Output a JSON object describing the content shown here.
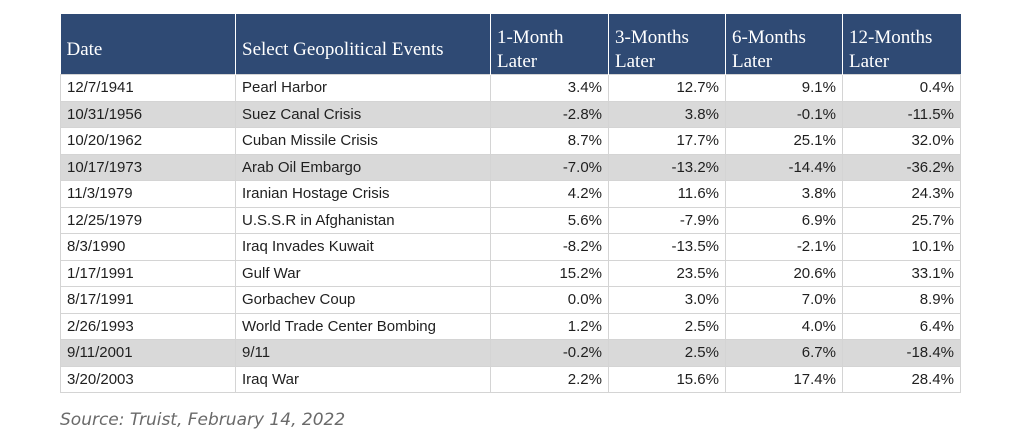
{
  "table": {
    "headers": {
      "date": "Date",
      "event": "Select Geopolitical Events",
      "m1_line1": "1-Month",
      "m1_line2": "Later",
      "m3_line1": "3-Months",
      "m3_line2": "Later",
      "m6_line1": "6-Months",
      "m6_line2": "Later",
      "m12_line1": "12-Months",
      "m12_line2": "Later"
    },
    "rows": [
      {
        "date": "12/7/1941",
        "event": "Pearl Harbor",
        "m1": "3.4%",
        "m3": "12.7%",
        "m6": "9.1%",
        "m12": "0.4%",
        "shaded": false
      },
      {
        "date": "10/31/1956",
        "event": "Suez Canal Crisis",
        "m1": "-2.8%",
        "m3": "3.8%",
        "m6": "-0.1%",
        "m12": "-11.5%",
        "shaded": true
      },
      {
        "date": "10/20/1962",
        "event": "Cuban Missile Crisis",
        "m1": "8.7%",
        "m3": "17.7%",
        "m6": "25.1%",
        "m12": "32.0%",
        "shaded": false
      },
      {
        "date": "10/17/1973",
        "event": "Arab Oil Embargo",
        "m1": "-7.0%",
        "m3": "-13.2%",
        "m6": "-14.4%",
        "m12": "-36.2%",
        "shaded": true
      },
      {
        "date": "11/3/1979",
        "event": "Iranian Hostage Crisis",
        "m1": "4.2%",
        "m3": "11.6%",
        "m6": "3.8%",
        "m12": "24.3%",
        "shaded": false
      },
      {
        "date": "12/25/1979",
        "event": "U.S.S.R in Afghanistan",
        "m1": "5.6%",
        "m3": "-7.9%",
        "m6": "6.9%",
        "m12": "25.7%",
        "shaded": false
      },
      {
        "date": "8/3/1990",
        "event": "Iraq Invades Kuwait",
        "m1": "-8.2%",
        "m3": "-13.5%",
        "m6": "-2.1%",
        "m12": "10.1%",
        "shaded": false
      },
      {
        "date": "1/17/1991",
        "event": "Gulf War",
        "m1": "15.2%",
        "m3": "23.5%",
        "m6": "20.6%",
        "m12": "33.1%",
        "shaded": false
      },
      {
        "date": "8/17/1991",
        "event": "Gorbachev Coup",
        "m1": "0.0%",
        "m3": "3.0%",
        "m6": "7.0%",
        "m12": "8.9%",
        "shaded": false
      },
      {
        "date": "2/26/1993",
        "event": "World Trade Center Bombing",
        "m1": "1.2%",
        "m3": "2.5%",
        "m6": "4.0%",
        "m12": "6.4%",
        "shaded": false
      },
      {
        "date": "9/11/2001",
        "event": "9/11",
        "m1": "-0.2%",
        "m3": "2.5%",
        "m6": "6.7%",
        "m12": "-18.4%",
        "shaded": true
      },
      {
        "date": "3/20/2003",
        "event": "Iraq War",
        "m1": "2.2%",
        "m3": "15.6%",
        "m6": "17.4%",
        "m12": "28.4%",
        "shaded": false
      }
    ]
  },
  "source": "Source: Truist, February 14, 2022",
  "colors": {
    "header_bg": "#2f4a74",
    "header_text": "#ffffff",
    "shaded_row": "#d9d9d9",
    "source_text": "#6a6a6a"
  }
}
